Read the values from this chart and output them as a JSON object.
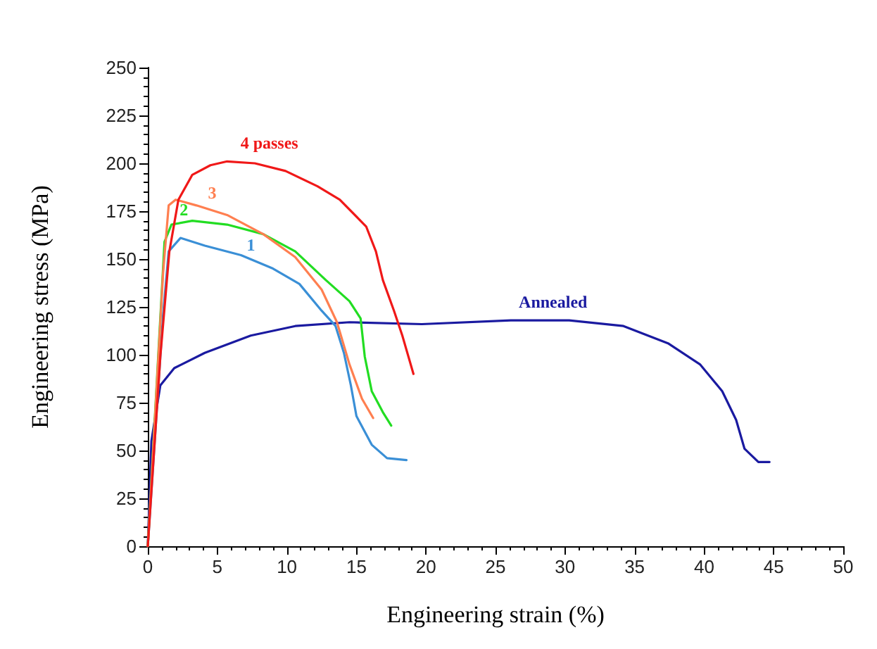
{
  "chart_data": {
    "type": "line",
    "xlabel": "Engineering strain (%)",
    "ylabel": "Engineering stress (MPa)",
    "xlim": [
      0,
      50
    ],
    "xticks": [
      0,
      5,
      10,
      15,
      20,
      25,
      30,
      35,
      40,
      45,
      50
    ],
    "ylim": [
      0,
      250
    ],
    "yticks": [
      0,
      25,
      50,
      75,
      100,
      125,
      150,
      175,
      200,
      225,
      250
    ],
    "grid": false,
    "marker": "none",
    "line_style": "solid",
    "series": [
      {
        "name": "4 passes",
        "color": "#f01818",
        "x": [
          0,
          0.9,
          1.55,
          2.2,
          3.2,
          4.5,
          5.7,
          7.7,
          9.9,
          12.2,
          13.8,
          15.7,
          16.4,
          16.9,
          17.7,
          18.3,
          19.1
        ],
        "values": [
          0,
          99,
          154,
          181,
          194,
          199,
          201,
          200,
          196,
          188,
          181,
          167,
          154,
          139,
          123,
          110,
          90
        ]
      },
      {
        "name": "3",
        "color": "#ff7f50",
        "x": [
          0,
          1.1,
          1.5,
          2.0,
          3.5,
          5.7,
          8.3,
          10.6,
          12.5,
          13.6,
          14.5,
          15.4,
          16.2
        ],
        "values": [
          0,
          143,
          178,
          181,
          178,
          173,
          163,
          151,
          134,
          117,
          95,
          77,
          67
        ]
      },
      {
        "name": "2",
        "color": "#22dd22",
        "x": [
          0,
          1.2,
          1.7,
          3.2,
          5.7,
          8.3,
          10.6,
          12.8,
          14.5,
          15.3,
          15.6,
          16.1,
          16.9,
          17.5
        ],
        "values": [
          0,
          159,
          168,
          170,
          168,
          163,
          154,
          139,
          128,
          119,
          99,
          81,
          70,
          63
        ]
      },
      {
        "name": "1",
        "color": "#3a8fd6",
        "x": [
          0,
          1.1,
          1.5,
          2.35,
          4.1,
          6.7,
          9.0,
          10.9,
          12.5,
          13.5,
          14.1,
          14.6,
          15.0,
          16.1,
          17.2,
          18.6
        ],
        "values": [
          0,
          121,
          154,
          161,
          157,
          152,
          145,
          137,
          123,
          115,
          101,
          84,
          68,
          53,
          46,
          45
        ]
      },
      {
        "name": "Annealed",
        "color": "#1a1aa0",
        "x": [
          0,
          0.26,
          0.9,
          1.9,
          4.1,
          7.4,
          10.6,
          14.5,
          19.7,
          26.1,
          30.3,
          34.2,
          37.4,
          39.7,
          41.3,
          42.3,
          42.9,
          43.9,
          44.7
        ],
        "values": [
          0,
          55,
          84,
          93,
          101,
          110,
          115,
          117,
          116,
          118,
          118,
          115,
          106,
          95,
          81,
          66,
          51,
          44,
          44
        ]
      }
    ]
  }
}
